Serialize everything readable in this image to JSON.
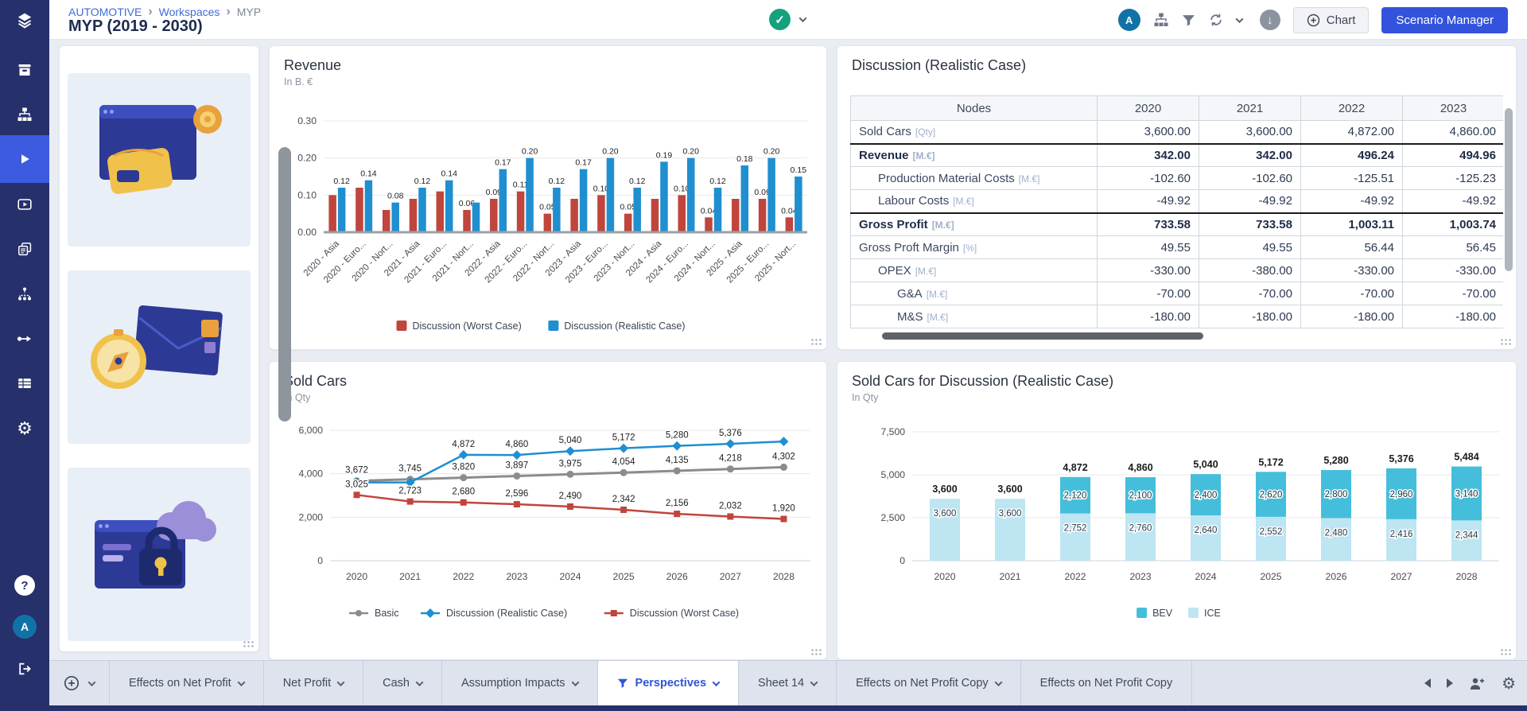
{
  "header": {
    "breadcrumb": [
      "AUTOMOTIVE",
      "Workspaces",
      "MYP"
    ],
    "title": "MYP (2019 - 2030)",
    "avatar_letter": "A",
    "buttons": {
      "chart": "Chart",
      "scenario_manager": "Scenario Manager"
    }
  },
  "sidebar": {
    "avatar_letter": "A",
    "help_glyph": "?"
  },
  "icons": {
    "check": "✓",
    "download_arrow": "↓",
    "gear": "⚙",
    "breadcrumb_separator": "›"
  },
  "colors": {
    "sidebar": "#26306b",
    "sidebar_active": "#3d5be0",
    "primary_button": "#3353dd",
    "status_green": "#16a17e",
    "avatar_blue": "#1172a8",
    "tab_active_text": "#2f55d4",
    "worst_case": "#c0453c",
    "realistic_case": "#1f8fd0",
    "basic_gray": "#8c8c8c",
    "bev": "#45bedb",
    "ice": "#bde5f2"
  },
  "table": {
    "title": "Discussion (Realistic Case)",
    "columns": [
      "Nodes",
      "2020",
      "2021",
      "2022",
      "2023"
    ],
    "rows": [
      {
        "label": "Sold Cars",
        "unit": "[Qty]",
        "indent": 0,
        "bold": false,
        "values": [
          "3,600.00",
          "3,600.00",
          "4,872.00",
          "4,860.00"
        ]
      },
      {
        "label": "Revenue",
        "unit": "[M.€]",
        "indent": 0,
        "bold": true,
        "values": [
          "342.00",
          "342.00",
          "496.24",
          "494.96"
        ]
      },
      {
        "label": "Production Material Costs",
        "unit": "[M.€]",
        "indent": 1,
        "bold": false,
        "values": [
          "-102.60",
          "-102.60",
          "-125.51",
          "-125.23"
        ]
      },
      {
        "label": "Labour Costs",
        "unit": "[M.€]",
        "indent": 1,
        "bold": false,
        "values": [
          "-49.92",
          "-49.92",
          "-49.92",
          "-49.92"
        ]
      },
      {
        "label": "Gross Profit",
        "unit": "[M.€]",
        "indent": 0,
        "bold": true,
        "values": [
          "733.58",
          "733.58",
          "1,003.11",
          "1,003.74"
        ]
      },
      {
        "label": "Gross Proft Margin",
        "unit": "[%]",
        "indent": 0,
        "bold": false,
        "values": [
          "49.55",
          "49.55",
          "56.44",
          "56.45"
        ]
      },
      {
        "label": "OPEX",
        "unit": "[M.€]",
        "indent": 1,
        "bold": false,
        "values": [
          "-330.00",
          "-380.00",
          "-330.00",
          "-330.00"
        ]
      },
      {
        "label": "G&A",
        "unit": "[M.€]",
        "indent": 2,
        "bold": false,
        "values": [
          "-70.00",
          "-70.00",
          "-70.00",
          "-70.00"
        ]
      },
      {
        "label": "M&S",
        "unit": "[M.€]",
        "indent": 2,
        "bold": false,
        "values": [
          "-180.00",
          "-180.00",
          "-180.00",
          "-180.00"
        ]
      }
    ]
  },
  "chart_data": [
    {
      "type": "bar",
      "title": "Revenue",
      "subtitle": "In B. €",
      "categories": [
        "2020 - Asia",
        "2020 - Euro...",
        "2020 - Nort...",
        "2021 - Asia",
        "2021 - Euro...",
        "2021 - Nort...",
        "2022 - Asia",
        "2022 - Euro...",
        "2022 - Nort...",
        "2023 - Asia",
        "2023 - Euro...",
        "2023 - Nort...",
        "2024 - Asia",
        "2024 - Euro...",
        "2024 - Nort...",
        "2025 - Asia",
        "2025 - Euro...",
        "2025 - Nort..."
      ],
      "y_ticks": [
        "0.00",
        "0.10",
        "0.20",
        "0.30"
      ],
      "ylim": [
        0,
        0.3
      ],
      "legend_position": "bottom",
      "series": [
        {
          "name": "Discussion (Worst Case)",
          "color": "#c0453c",
          "values": [
            0.1,
            0.12,
            0.06,
            0.09,
            0.11,
            0.06,
            0.09,
            0.11,
            0.05,
            0.09,
            0.1,
            0.05,
            0.09,
            0.1,
            0.04,
            0.09,
            0.09,
            0.04
          ],
          "labels": [
            "",
            "",
            "",
            "",
            "",
            "0.06",
            "0.09",
            "0.11",
            "0.05",
            "",
            "0.10",
            "0.05",
            "",
            "0.10",
            "0.04",
            "",
            "0.09",
            "0.04"
          ]
        },
        {
          "name": "Discussion (Realistic Case)",
          "color": "#1f8fd0",
          "values": [
            0.12,
            0.14,
            0.08,
            0.12,
            0.14,
            0.08,
            0.17,
            0.2,
            0.12,
            0.17,
            0.2,
            0.12,
            0.19,
            0.2,
            0.12,
            0.18,
            0.2,
            0.15
          ],
          "labels": [
            "0.12",
            "0.14",
            "0.08",
            "0.12",
            "0.14",
            "",
            "0.17",
            "0.20",
            "0.12",
            "0.17",
            "0.20",
            "0.12",
            "0.19",
            "0.20",
            "0.12",
            "0.18",
            "0.20",
            "0.15"
          ]
        }
      ]
    },
    {
      "type": "line",
      "title": "Sold Cars",
      "subtitle": "In Qty",
      "categories": [
        "2020",
        "2021",
        "2022",
        "2023",
        "2024",
        "2025",
        "2026",
        "2027",
        "2028"
      ],
      "y_ticks": [
        "0",
        "2,000",
        "4,000",
        "6,000"
      ],
      "ylim": [
        0,
        6000
      ],
      "legend_position": "bottom",
      "series": [
        {
          "name": "Basic",
          "color": "#8c8c8c",
          "marker": "circle",
          "values": [
            3672,
            3745,
            3820,
            3897,
            3975,
            4054,
            4135,
            4218,
            4302
          ],
          "labels": [
            "3,672",
            "3,745",
            "3,820",
            "3,897",
            "3,975",
            "4,054",
            "4,135",
            "4,218",
            "4,302"
          ]
        },
        {
          "name": "Discussion (Realistic Case)",
          "color": "#1f8fd0",
          "marker": "diamond",
          "values": [
            3600,
            3600,
            4872,
            4860,
            5040,
            5172,
            5280,
            5376,
            5484
          ],
          "labels": [
            "",
            "",
            "4,872",
            "4,860",
            "5,040",
            "5,172",
            "5,280",
            "5,376",
            ""
          ]
        },
        {
          "name": "Discussion (Worst Case)",
          "color": "#c0453c",
          "marker": "square",
          "values": [
            3025,
            2723,
            2680,
            2596,
            2490,
            2342,
            2156,
            2032,
            1920
          ],
          "labels": [
            "3,025",
            "2,723",
            "2,680",
            "2,596",
            "2,490",
            "2,342",
            "2,156",
            "2,032",
            "1,920"
          ]
        }
      ]
    },
    {
      "type": "bar",
      "stacked": true,
      "title": "Sold Cars for Discussion (Realistic Case)",
      "subtitle": "In Qty",
      "categories": [
        "2020",
        "2021",
        "2022",
        "2023",
        "2024",
        "2025",
        "2026",
        "2027",
        "2028"
      ],
      "y_ticks": [
        "0",
        "2,500",
        "5,000",
        "7,500"
      ],
      "ylim": [
        0,
        7500
      ],
      "legend_position": "bottom",
      "series": [
        {
          "name": "BEV",
          "color": "#45bedb",
          "values": [
            0,
            0,
            2120,
            2100,
            2400,
            2620,
            2800,
            2960,
            3140
          ],
          "labels": [
            "",
            "",
            "2,120",
            "2,100",
            "2,400",
            "2,620",
            "2,800",
            "2,960",
            "3,140"
          ]
        },
        {
          "name": "ICE",
          "color": "#bde5f2",
          "values": [
            3600,
            3600,
            2752,
            2760,
            2640,
            2552,
            2480,
            2416,
            2344
          ],
          "labels": [
            "3,600",
            "3,600",
            "2,752",
            "2,760",
            "2,640",
            "2,552",
            "2,480",
            "2,416",
            "2,344"
          ]
        }
      ],
      "totals": [
        "3,600",
        "3,600",
        "4,872",
        "4,860",
        "5,040",
        "5,172",
        "5,280",
        "5,376",
        "5,484"
      ]
    }
  ],
  "footer": {
    "tabs": [
      {
        "label": "Effects on Net Profit",
        "chevron": true,
        "active": false,
        "filter_icon": false
      },
      {
        "label": "Net Profit",
        "chevron": true,
        "active": false,
        "filter_icon": false
      },
      {
        "label": "Cash",
        "chevron": true,
        "active": false,
        "filter_icon": false
      },
      {
        "label": "Assumption Impacts",
        "chevron": true,
        "active": false,
        "filter_icon": false
      },
      {
        "label": "Perspectives",
        "chevron": true,
        "active": true,
        "filter_icon": true
      },
      {
        "label": "Sheet 14",
        "chevron": true,
        "active": false,
        "filter_icon": false
      },
      {
        "label": "Effects on Net Profit Copy",
        "chevron": true,
        "active": false,
        "filter_icon": false
      },
      {
        "label": "Effects on Net Profit Copy",
        "chevron": false,
        "active": false,
        "filter_icon": false
      }
    ]
  }
}
